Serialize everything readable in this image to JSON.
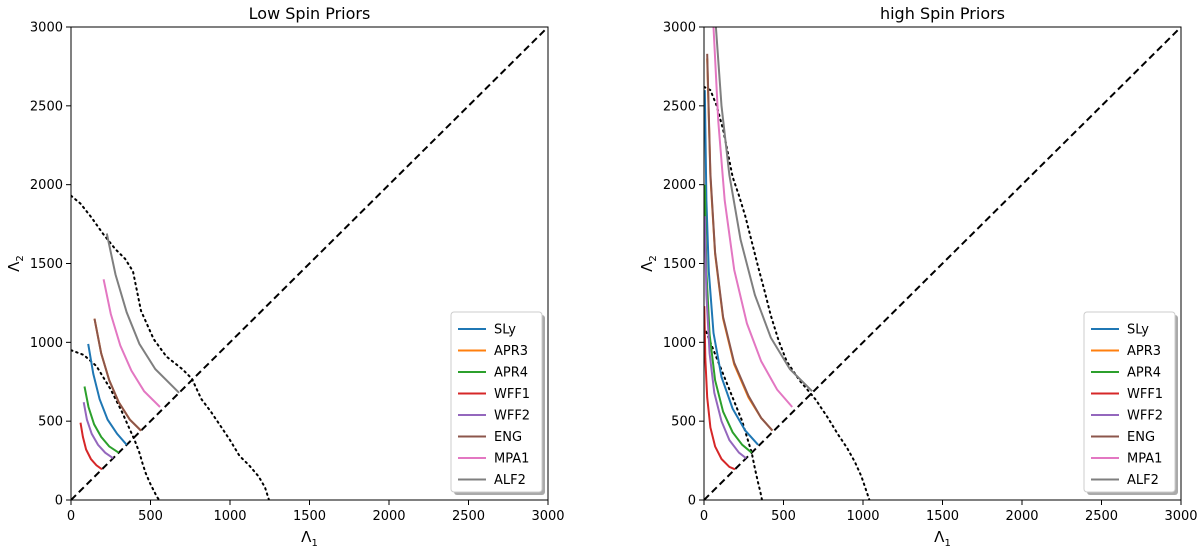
{
  "chart_data": [
    {
      "type": "line",
      "title": "Low Spin Priors",
      "xlabel": "Λ",
      "xlabel_sub": "1",
      "ylabel": "Λ",
      "ylabel_sub": "2",
      "xlim": [
        0,
        3000
      ],
      "ylim": [
        0,
        3000
      ],
      "xticks": [
        0,
        500,
        1000,
        1500,
        2000,
        2500,
        3000
      ],
      "yticks": [
        0,
        500,
        1000,
        1500,
        2000,
        2500,
        3000
      ],
      "xtick_labels": [
        "0",
        "500",
        "1000",
        "1500",
        "2000",
        "2500",
        "3000"
      ],
      "ytick_labels": [
        "0",
        "500",
        "1000",
        "1500",
        "2000",
        "2500",
        "3000"
      ],
      "grid": false,
      "legend_position": "lower-right",
      "series": [
        {
          "name": "SLy",
          "color": "#1f77b4",
          "x": [
            108,
            140,
            180,
            230,
            290,
            350
          ],
          "y": [
            990,
            800,
            640,
            510,
            420,
            350
          ]
        },
        {
          "name": "APR3",
          "color": "#ff7f0e",
          "x": [
            148,
            190,
            240,
            300,
            370,
            440
          ],
          "y": [
            1150,
            930,
            760,
            620,
            510,
            440
          ]
        },
        {
          "name": "APR4",
          "color": "#2ca02c",
          "x": [
            85,
            110,
            145,
            190,
            240,
            300
          ],
          "y": [
            720,
            590,
            480,
            400,
            340,
            300
          ]
        },
        {
          "name": "WFF1",
          "color": "#d62728",
          "x": [
            60,
            75,
            95,
            125,
            160,
            195
          ],
          "y": [
            490,
            400,
            320,
            260,
            220,
            195
          ]
        },
        {
          "name": "WFF2",
          "color": "#9467bd",
          "x": [
            80,
            100,
            130,
            170,
            215,
            265
          ],
          "y": [
            620,
            510,
            420,
            350,
            300,
            265
          ]
        },
        {
          "name": "ENG",
          "color": "#8c564b",
          "x": [
            148,
            190,
            240,
            300,
            370,
            440
          ],
          "y": [
            1150,
            930,
            760,
            620,
            510,
            440
          ]
        },
        {
          "name": "MPA1",
          "color": "#e377c2",
          "x": [
            205,
            250,
            310,
            380,
            460,
            560
          ],
          "y": [
            1400,
            1180,
            980,
            820,
            690,
            590
          ]
        },
        {
          "name": "ALF2",
          "color": "#7f7f7f",
          "x": [
            225,
            280,
            350,
            430,
            530,
            680
          ],
          "y": [
            1690,
            1430,
            1190,
            990,
            830,
            680
          ]
        }
      ],
      "bounds": [
        {
          "x": [
            0,
            80,
            160,
            250,
            320,
            360,
            400,
            430,
            450,
            470,
            500,
            520,
            540,
            555
          ],
          "y": [
            950,
            920,
            850,
            700,
            560,
            470,
            380,
            300,
            230,
            170,
            100,
            60,
            20,
            0
          ]
        },
        {
          "x": [
            0,
            60,
            130,
            200,
            280,
            340,
            390,
            440,
            520,
            600,
            700,
            760,
            820,
            880,
            940,
            1000,
            1060,
            1120,
            1180,
            1220,
            1245
          ],
          "y": [
            1930,
            1880,
            1790,
            1690,
            1590,
            1530,
            1450,
            1200,
            1020,
            910,
            830,
            770,
            640,
            560,
            470,
            380,
            280,
            220,
            150,
            80,
            0
          ]
        }
      ],
      "diagonal": {
        "x": [
          0,
          3000
        ],
        "y": [
          0,
          3000
        ]
      }
    },
    {
      "type": "line",
      "title": "high Spin Priors",
      "xlabel": "Λ",
      "xlabel_sub": "1",
      "ylabel": "Λ",
      "ylabel_sub": "2",
      "xlim": [
        0,
        3000
      ],
      "ylim": [
        0,
        3000
      ],
      "xticks": [
        0,
        500,
        1000,
        1500,
        2000,
        2500,
        3000
      ],
      "yticks": [
        0,
        500,
        1000,
        1500,
        2000,
        2500,
        3000
      ],
      "xtick_labels": [
        "0",
        "500",
        "1000",
        "1500",
        "2000",
        "2500",
        "3000"
      ],
      "ytick_labels": [
        "0",
        "500",
        "1000",
        "1500",
        "2000",
        "2500",
        "3000"
      ],
      "grid": false,
      "legend_position": "lower-right",
      "series": [
        {
          "name": "SLy",
          "color": "#1f77b4",
          "x": [
            5,
            15,
            30,
            60,
            110,
            180,
            260,
            340
          ],
          "y": [
            2600,
            1900,
            1450,
            1060,
            780,
            580,
            440,
            350
          ]
        },
        {
          "name": "APR3",
          "color": "#ff7f0e",
          "x": [
            20,
            40,
            70,
            120,
            190,
            280,
            360,
            430
          ],
          "y": [
            2800,
            2050,
            1560,
            1150,
            860,
            650,
            520,
            440
          ]
        },
        {
          "name": "APR4",
          "color": "#2ca02c",
          "x": [
            5,
            15,
            35,
            70,
            120,
            180,
            240,
            300
          ],
          "y": [
            2000,
            1450,
            1050,
            760,
            560,
            430,
            350,
            300
          ]
        },
        {
          "name": "WFF1",
          "color": "#d62728",
          "x": [
            2,
            8,
            20,
            40,
            70,
            110,
            160,
            195
          ],
          "y": [
            1230,
            900,
            650,
            460,
            340,
            260,
            210,
            195
          ]
        },
        {
          "name": "WFF2",
          "color": "#9467bd",
          "x": [
            5,
            15,
            35,
            65,
            110,
            160,
            220,
            265
          ],
          "y": [
            1800,
            1300,
            930,
            680,
            500,
            380,
            300,
            265
          ]
        },
        {
          "name": "ENG",
          "color": "#8c564b",
          "x": [
            20,
            40,
            70,
            120,
            190,
            280,
            360,
            430
          ],
          "y": [
            2830,
            2070,
            1570,
            1160,
            870,
            660,
            520,
            440
          ]
        },
        {
          "name": "MPA1",
          "color": "#e377c2",
          "x": [
            60,
            90,
            130,
            190,
            270,
            360,
            460,
            555
          ],
          "y": [
            3000,
            2400,
            1900,
            1460,
            1120,
            880,
            700,
            590
          ]
        },
        {
          "name": "ALF2",
          "color": "#7f7f7f",
          "x": [
            75,
            110,
            160,
            230,
            320,
            420,
            540,
            680
          ],
          "y": [
            3000,
            2500,
            2060,
            1650,
            1300,
            1030,
            830,
            690
          ]
        }
      ],
      "bounds": [
        {
          "x": [
            0,
            40,
            80,
            120,
            160,
            200,
            240,
            270,
            300,
            320,
            340,
            355,
            365
          ],
          "y": [
            1100,
            1000,
            900,
            800,
            700,
            600,
            500,
            400,
            300,
            200,
            110,
            50,
            0
          ]
        },
        {
          "x": [
            0,
            40,
            80,
            120,
            150,
            180,
            220,
            260,
            300,
            340,
            380,
            420,
            470,
            520,
            600,
            700,
            780,
            840,
            900,
            950,
            990,
            1020,
            1040
          ],
          "y": [
            2620,
            2600,
            2500,
            2350,
            2200,
            2050,
            1930,
            1800,
            1640,
            1480,
            1330,
            1170,
            1010,
            880,
            760,
            640,
            520,
            420,
            330,
            240,
            150,
            60,
            0
          ]
        }
      ],
      "diagonal": {
        "x": [
          0,
          3000
        ],
        "y": [
          0,
          3000
        ]
      }
    }
  ]
}
